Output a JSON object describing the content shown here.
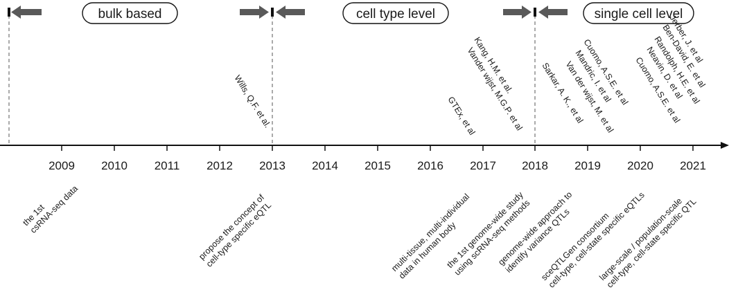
{
  "eras": [
    {
      "label": "bulk based"
    },
    {
      "label": "cell type level"
    },
    {
      "label": "single cell level"
    }
  ],
  "years": [
    "2009",
    "2010",
    "2011",
    "2012",
    "2013",
    "2014",
    "2015",
    "2016",
    "2017",
    "2018",
    "2019",
    "2020",
    "2021"
  ],
  "citations": [
    {
      "text": "Wills, Q.F. et al."
    },
    {
      "text": "GTEx, et al"
    },
    {
      "text": "Kang, H.M. et al."
    },
    {
      "text": "Vander wijst, M.G.P. et al"
    },
    {
      "text": "Sarkar, A. K., et al"
    },
    {
      "text": "Cuomo, A.S.E. et al"
    },
    {
      "text": "Mandric, I. et al"
    },
    {
      "text": "Van der wijst, M. et al"
    },
    {
      "text": "Neavin, D. et al"
    },
    {
      "text": "Cuomo, A.S.E. et al"
    },
    {
      "text": "Randolph, H.E. et al"
    },
    {
      "text": "Ben-David, E. et al"
    },
    {
      "text": "Jerber, J. et al"
    }
  ],
  "notes": [
    {
      "lines": [
        "the 1st",
        "csRNA-seq data"
      ]
    },
    {
      "lines": [
        "propose the concept of",
        "cell-type specific eQTL"
      ]
    },
    {
      "lines": [
        "multi-tissue, multi-individual",
        "data in human body"
      ]
    },
    {
      "lines": [
        "the 1st genome-wide study",
        "using scRNA-seq methods"
      ]
    },
    {
      "lines": [
        "genome-wide approach to",
        "identify variance QTLs"
      ]
    },
    {
      "lines": [
        "sceQTLGen consortium",
        "cell-type, cell-state specific eQTLs"
      ]
    },
    {
      "lines": [
        "large-scale / population-scale",
        "cell-type, cell-state specific QTL"
      ]
    }
  ],
  "colors": {
    "arrow": "#595959",
    "line": "#111111",
    "dash": "#555555"
  }
}
